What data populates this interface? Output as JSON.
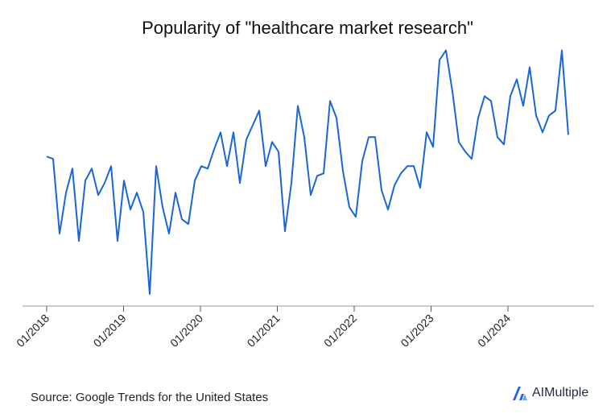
{
  "chart_data": {
    "type": "line",
    "title": "Popularity of \"healthcare market research\"",
    "xlabel": "",
    "ylabel": "",
    "x_ticks": [
      "01/2018",
      "01/2019",
      "01/2020",
      "01/2021",
      "01/2022",
      "01/2023",
      "01/2024"
    ],
    "grid": false,
    "series": [
      {
        "color": "#1a66d6",
        "values": [
          62,
          61,
          30,
          47,
          57,
          27,
          52,
          57,
          46,
          51,
          58,
          27,
          52,
          40,
          47,
          39,
          5,
          58,
          41,
          30,
          47,
          36,
          34,
          52,
          58,
          57,
          65,
          72,
          58,
          72,
          51,
          69,
          75,
          81,
          58,
          68,
          64,
          31,
          51,
          83,
          70,
          46,
          54,
          55,
          85,
          78,
          56,
          41,
          37,
          60,
          70,
          70,
          48,
          40,
          50,
          55,
          58,
          58,
          49,
          72,
          66,
          102,
          106,
          89,
          68,
          64,
          61,
          78,
          87,
          85,
          70,
          67,
          87,
          94,
          83,
          99,
          79,
          72,
          79,
          81,
          106,
          71
        ]
      }
    ],
    "ylim": [
      0,
      110
    ]
  },
  "source": "Source: Google Trends for the United States",
  "brand": {
    "name": "AIMultiple",
    "accent": "#1a66d6",
    "text_color": "#1f2a44"
  }
}
